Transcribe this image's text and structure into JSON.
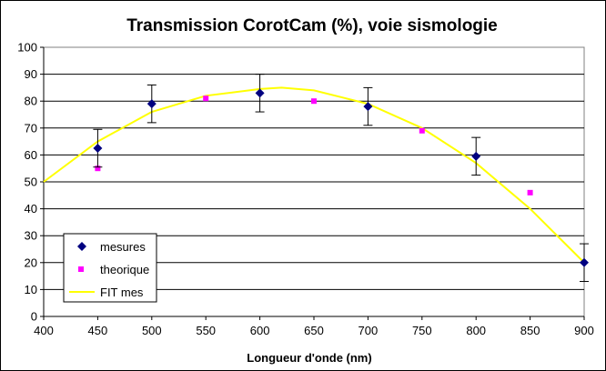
{
  "chart_data": {
    "type": "scatter",
    "title": "Transmission CorotCam (%), voie sismologie",
    "xlabel": "Longueur d'onde (nm)",
    "ylabel": "",
    "xlim": [
      400,
      900
    ],
    "ylim": [
      0,
      100
    ],
    "x_ticks": [
      400,
      450,
      500,
      550,
      600,
      650,
      700,
      750,
      800,
      850,
      900
    ],
    "y_ticks": [
      0,
      10,
      20,
      30,
      40,
      50,
      60,
      70,
      80,
      90,
      100
    ],
    "grid": "horizontal",
    "legend_position": "bottom-left",
    "series": [
      {
        "name": "mesures",
        "marker": "diamond",
        "color": "#000080",
        "points": [
          {
            "x": 450,
            "y": 62.5,
            "err": 7
          },
          {
            "x": 500,
            "y": 79,
            "err": 7
          },
          {
            "x": 600,
            "y": 83,
            "err": 7
          },
          {
            "x": 700,
            "y": 78,
            "err": 7
          },
          {
            "x": 800,
            "y": 59.5,
            "err": 7
          },
          {
            "x": 900,
            "y": 20,
            "err": 7
          }
        ]
      },
      {
        "name": "theorique",
        "marker": "square",
        "color": "#ff00ff",
        "points": [
          {
            "x": 450,
            "y": 55
          },
          {
            "x": 550,
            "y": 81
          },
          {
            "x": 650,
            "y": 80
          },
          {
            "x": 750,
            "y": 69
          },
          {
            "x": 850,
            "y": 46
          }
        ]
      },
      {
        "name": "FIT mes",
        "type": "line",
        "color": "#ffff00",
        "points": [
          {
            "x": 400,
            "y": 50
          },
          {
            "x": 450,
            "y": 65
          },
          {
            "x": 500,
            "y": 76
          },
          {
            "x": 550,
            "y": 82
          },
          {
            "x": 600,
            "y": 84.5
          },
          {
            "x": 620,
            "y": 85
          },
          {
            "x": 650,
            "y": 84
          },
          {
            "x": 700,
            "y": 79
          },
          {
            "x": 750,
            "y": 70
          },
          {
            "x": 800,
            "y": 57
          },
          {
            "x": 850,
            "y": 40
          },
          {
            "x": 900,
            "y": 20
          }
        ]
      }
    ]
  }
}
